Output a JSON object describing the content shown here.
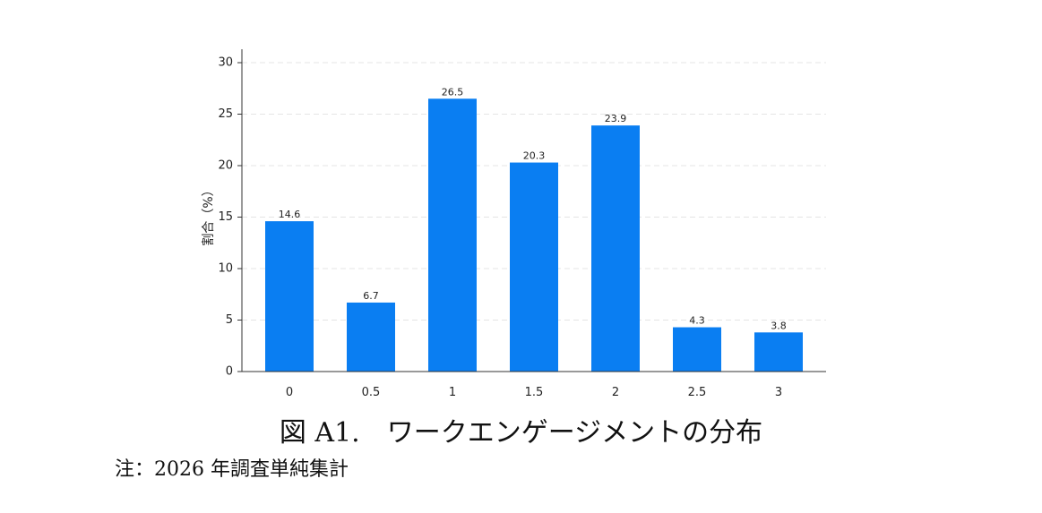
{
  "chart_data": {
    "type": "bar",
    "categories": [
      "0",
      "0.5",
      "1",
      "1.5",
      "2",
      "2.5",
      "3"
    ],
    "values": [
      14.6,
      6.7,
      26.5,
      20.3,
      23.9,
      4.3,
      3.8
    ],
    "data_labels": [
      "14.6",
      "6.7",
      "26.5",
      "20.3",
      "23.9",
      "4.3",
      "3.8"
    ],
    "ylabel": "割合（%）",
    "xlabel": "",
    "ylim": [
      0,
      30
    ],
    "yticks": [
      0,
      5,
      10,
      15,
      20,
      25,
      30
    ],
    "bar_color": "#0a7ef2",
    "grid": "horizontal-dashed",
    "legend": "none"
  },
  "caption": "図 A1.　ワークエンゲージメントの分布",
  "note": "注：2026 年調査単純集計"
}
